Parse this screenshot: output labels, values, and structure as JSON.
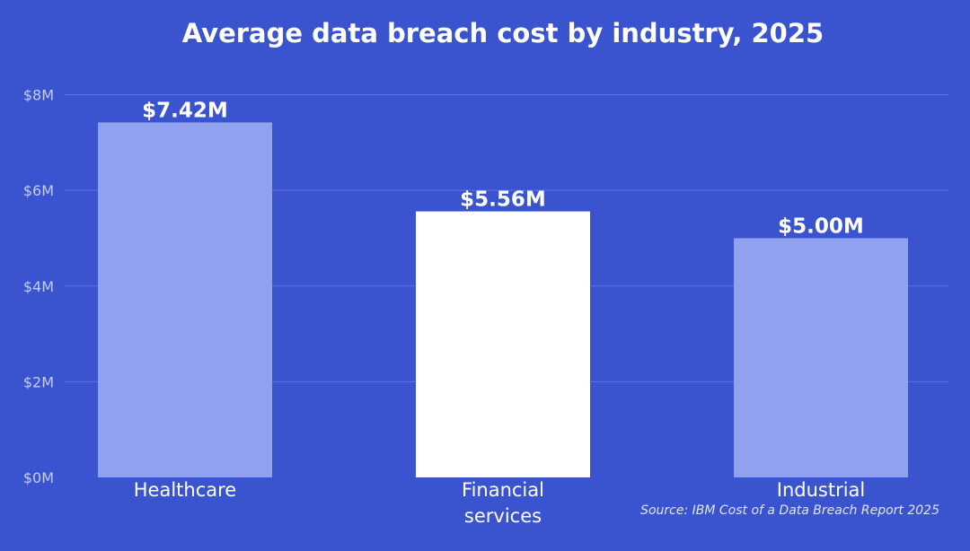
{
  "chart_data": {
    "type": "bar",
    "title": "Average data breach cost by industry, 2025",
    "xlabel": "",
    "ylabel": "",
    "categories": [
      "Healthcare",
      "Financial services",
      "Industrial"
    ],
    "category_lines": [
      [
        "Healthcare"
      ],
      [
        "Financial",
        "services"
      ],
      [
        "Industrial"
      ]
    ],
    "values": [
      7.42,
      5.56,
      5.0
    ],
    "value_unit": "millions USD",
    "data_labels": [
      "$7.42M",
      "$5.56M",
      "$5.00M"
    ],
    "ylim": [
      0,
      8
    ],
    "yticks": [
      0,
      2,
      4,
      6,
      8
    ],
    "ytick_labels": [
      "$0M",
      "$2M",
      "$4M",
      "$6M",
      "$8M"
    ],
    "grid": true,
    "highlighted_category": "Financial services",
    "source_note": "Source: IBM Cost of a Data Breach Report 2025",
    "colors": {
      "background": "#3a53cf",
      "bar": "#90a1f0",
      "bar_highlight": "#ffffff",
      "gridline": "#5b72e0",
      "tick_text": "#c5cdf5",
      "text": "#ffffff"
    }
  }
}
